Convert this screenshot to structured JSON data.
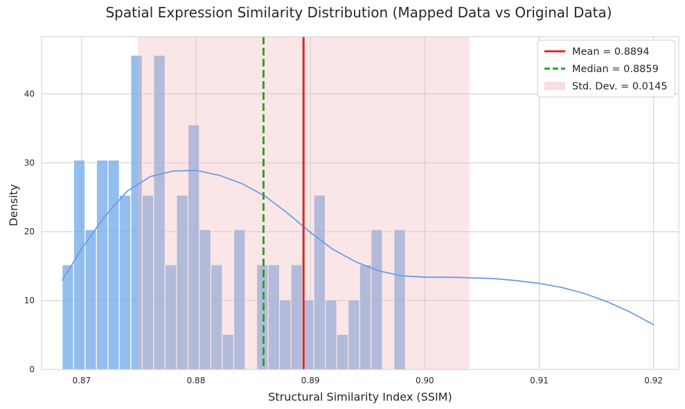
{
  "chart_data": {
    "type": "bar",
    "title": "Spatial Expression Similarity Distribution (Mapped Data vs Original Data)",
    "xlabel": "Structural Similarity Index (SSIM)",
    "ylabel": "Density",
    "xlim": [
      0.8665,
      0.9222
    ],
    "ylim": [
      0,
      48.3
    ],
    "x_ticks": [
      0.87,
      0.88,
      0.89,
      0.9,
      0.91,
      0.92
    ],
    "x_tick_labels": [
      "0.87",
      "0.88",
      "0.89",
      "0.90",
      "0.91",
      "0.92"
    ],
    "y_ticks": [
      0,
      10,
      20,
      30,
      40
    ],
    "y_tick_labels": [
      "0",
      "10",
      "20",
      "30",
      "40"
    ],
    "grid": true,
    "legend_position": "top-right",
    "histogram": {
      "bin_start": 0.8683,
      "bin_width": 0.001,
      "densities": [
        15.2,
        30.4,
        20.3,
        30.4,
        30.4,
        25.3,
        45.6,
        25.3,
        45.6,
        15.2,
        25.3,
        35.5,
        20.3,
        15.2,
        5.1,
        20.3,
        0,
        15.2,
        15.2,
        10.1,
        15.2,
        10.1,
        25.3,
        10.1,
        5.1,
        10.1,
        15.2,
        20.3,
        0,
        20.3
      ],
      "color": "#6fa8e8"
    },
    "kde": {
      "x": [
        0.8683,
        0.87,
        0.872,
        0.874,
        0.876,
        0.878,
        0.88,
        0.882,
        0.884,
        0.886,
        0.888,
        0.89,
        0.892,
        0.894,
        0.896,
        0.898,
        0.9,
        0.902,
        0.904,
        0.906,
        0.908,
        0.91,
        0.912,
        0.914,
        0.916,
        0.918,
        0.92
      ],
      "y": [
        12.9,
        17.5,
        22.2,
        25.9,
        28.0,
        28.8,
        28.9,
        28.2,
        27.0,
        25.2,
        22.7,
        19.9,
        17.4,
        15.6,
        14.3,
        13.6,
        13.4,
        13.4,
        13.3,
        13.2,
        12.9,
        12.5,
        11.9,
        11.0,
        9.8,
        8.3,
        6.5
      ],
      "color": "#6a9de6"
    },
    "mean": 0.8894,
    "median": 0.8859,
    "std": 0.0145,
    "std_band": [
      0.8749,
      0.9039
    ],
    "mean_color": "#d62728",
    "median_color": "#2ca02c",
    "std_color": "#f5d0d0",
    "legend": [
      {
        "label": "Mean = 0.8894",
        "style": "solid",
        "color": "#d62728"
      },
      {
        "label": "Median = 0.8859",
        "style": "dashed",
        "color": "#2ca02c"
      },
      {
        "label": "Std. Dev. = 0.0145",
        "style": "patch",
        "color": "#f5d0d0"
      }
    ]
  }
}
